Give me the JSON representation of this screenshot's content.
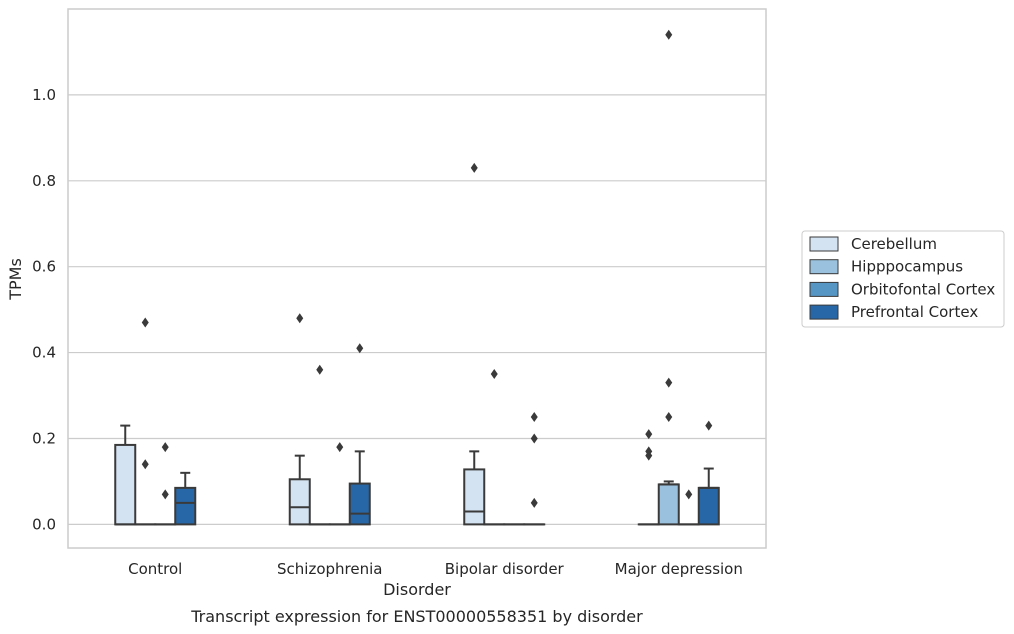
{
  "chart_data": {
    "type": "box",
    "xlabel": "Disorder",
    "ylabel": "TPMs",
    "caption": "Transcript expression for ENST00000558351 by disorder",
    "ylim": [
      -0.055,
      1.2
    ],
    "yticks": [
      "0.0",
      "0.2",
      "0.4",
      "0.6",
      "0.8",
      "1.0"
    ],
    "ytick_values": [
      0.0,
      0.2,
      0.4,
      0.6,
      0.8,
      1.0
    ],
    "grid": "horizontal",
    "legend_position": "right",
    "categories": [
      "Control",
      "Schizophrenia",
      "Bipolar disorder",
      "Major depression"
    ],
    "series": [
      {
        "name": "Cerebellum",
        "color": "#d4e3f2",
        "boxes": [
          {
            "q1": 0.0,
            "median": 0.0,
            "q3": 0.185,
            "whisker_low": 0.0,
            "whisker_high": 0.23,
            "outliers": []
          },
          {
            "q1": 0.0,
            "median": 0.04,
            "q3": 0.105,
            "whisker_low": 0.0,
            "whisker_high": 0.16,
            "outliers": [
              0.48
            ]
          },
          {
            "q1": 0.0,
            "median": 0.03,
            "q3": 0.128,
            "whisker_low": 0.0,
            "whisker_high": 0.17,
            "outliers": [
              0.83
            ]
          },
          {
            "q1": 0.0,
            "median": 0.0,
            "q3": 0.0,
            "whisker_low": 0.0,
            "whisker_high": 0.0,
            "outliers": [
              0.16,
              0.17,
              0.21
            ]
          }
        ]
      },
      {
        "name": "Hipppocampus",
        "color": "#9ac1dd",
        "boxes": [
          {
            "q1": 0.0,
            "median": 0.0,
            "q3": 0.0,
            "whisker_low": 0.0,
            "whisker_high": 0.0,
            "outliers": [
              0.14,
              0.47
            ]
          },
          {
            "q1": 0.0,
            "median": 0.0,
            "q3": 0.0,
            "whisker_low": 0.0,
            "whisker_high": 0.0,
            "outliers": [
              0.36
            ]
          },
          {
            "q1": 0.0,
            "median": 0.0,
            "q3": 0.0,
            "whisker_low": 0.0,
            "whisker_high": 0.0,
            "outliers": [
              0.35
            ]
          },
          {
            "q1": 0.0,
            "median": 0.093,
            "q3": 0.093,
            "whisker_low": 0.0,
            "whisker_high": 0.1,
            "outliers": [
              0.25,
              0.33,
              1.14
            ]
          }
        ]
      },
      {
        "name": "Orbitofontal Cortex",
        "color": "#5596c4",
        "boxes": [
          {
            "q1": 0.0,
            "median": 0.0,
            "q3": 0.0,
            "whisker_low": 0.0,
            "whisker_high": 0.0,
            "outliers": [
              0.07,
              0.18
            ]
          },
          {
            "q1": 0.0,
            "median": 0.0,
            "q3": 0.0,
            "whisker_low": 0.0,
            "whisker_high": 0.0,
            "outliers": [
              0.18
            ]
          },
          {
            "q1": 0.0,
            "median": 0.0,
            "q3": 0.0,
            "whisker_low": 0.0,
            "whisker_high": 0.0,
            "outliers": []
          },
          {
            "q1": 0.0,
            "median": 0.0,
            "q3": 0.0,
            "whisker_low": 0.0,
            "whisker_high": 0.0,
            "outliers": [
              0.07
            ]
          }
        ]
      },
      {
        "name": "Prefrontal Cortex",
        "color": "#2767a8",
        "boxes": [
          {
            "q1": 0.0,
            "median": 0.05,
            "q3": 0.085,
            "whisker_low": 0.0,
            "whisker_high": 0.12,
            "outliers": []
          },
          {
            "q1": 0.0,
            "median": 0.025,
            "q3": 0.095,
            "whisker_low": 0.0,
            "whisker_high": 0.17,
            "outliers": [
              0.41
            ]
          },
          {
            "q1": 0.0,
            "median": 0.0,
            "q3": 0.0,
            "whisker_low": 0.0,
            "whisker_high": 0.0,
            "outliers": [
              0.05,
              0.2,
              0.25
            ]
          },
          {
            "q1": 0.0,
            "median": 0.085,
            "q3": 0.085,
            "whisker_low": 0.0,
            "whisker_high": 0.13,
            "outliers": [
              0.23
            ]
          }
        ]
      }
    ]
  }
}
